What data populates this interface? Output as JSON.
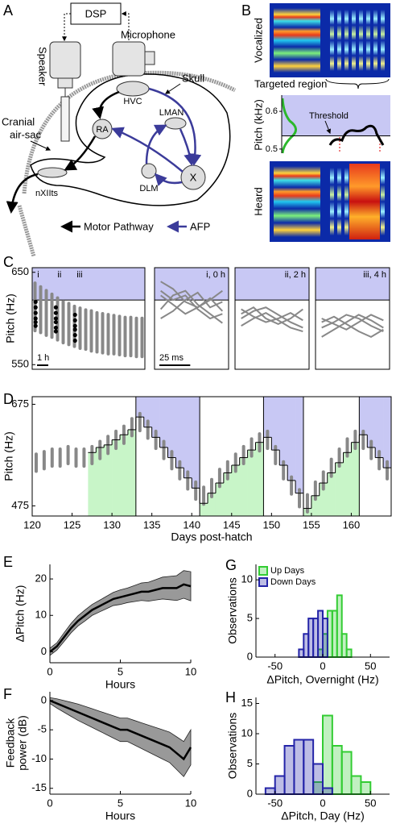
{
  "panel_labels": [
    "A",
    "B",
    "C",
    "D",
    "E",
    "F",
    "G",
    "H"
  ],
  "diagram": {
    "dsp": "DSP",
    "microphone": "Microphone",
    "speaker": "Speaker",
    "skull": "Skull",
    "cranial": "Cranial",
    "air_sac": "air-sac",
    "hvc": "HVC",
    "ra": "RA",
    "lman": "LMAN",
    "x": "X",
    "dlm": "DLM",
    "nxiits": "nXIIts",
    "motor_pathway": "Motor Pathway",
    "afp": "AFP"
  },
  "panel_b": {
    "vocalized": "Vocalized",
    "targeted_region": "Targeted region",
    "ylabel": "Pitch (kHz)",
    "threshold_label": "Threshold",
    "heard": "Heard",
    "ylim": [
      0.489,
      0.643
    ],
    "yticks": [
      0.5,
      0.6
    ],
    "threshold": 0.535,
    "shade_color": "#c8c8f4"
  },
  "chart_data": [
    {
      "type": "scatter",
      "ylabel": "Pitch (Hz)",
      "xlim": [
        0,
        10
      ],
      "ylim": [
        545,
        655
      ],
      "yticks": [
        550,
        650
      ],
      "threshold": 620,
      "shade_color": "#c8c8f4",
      "frame": true,
      "color": "#888888",
      "x": [
        0.25,
        0.75,
        1.25,
        1.75,
        2.25,
        2.75,
        3.25,
        3.75,
        4.25,
        4.75,
        5.25,
        5.75,
        6.25,
        6.75,
        7.25,
        7.75,
        8.25,
        8.75,
        9.25,
        9.75
      ],
      "low": [
        585,
        583,
        580,
        578,
        575,
        572,
        570,
        568,
        566,
        565,
        563,
        562,
        561,
        560,
        560,
        559,
        558,
        558,
        557,
        557
      ],
      "high": [
        640,
        636,
        632,
        628,
        624,
        620,
        618,
        615,
        613,
        611,
        610,
        608,
        607,
        606,
        605,
        604,
        603,
        603,
        602,
        602
      ],
      "series": [
        {
          "name": "i",
          "color": "#000000",
          "x": [
            0.3,
            0.3,
            0.3,
            0.3,
            0.3,
            0.3
          ],
          "values": [
            618,
            612,
            606,
            600,
            596,
            592
          ]
        },
        {
          "name": "ii",
          "color": "#000000",
          "x": [
            2.1,
            2.1,
            2.1,
            2.1,
            2.1,
            2.1
          ],
          "values": [
            612,
            606,
            600,
            596,
            590,
            586
          ]
        },
        {
          "name": "iii",
          "color": "#000000",
          "x": [
            3.8,
            3.8,
            3.8,
            3.8,
            3.8,
            3.8
          ],
          "values": [
            604,
            598,
            592,
            588,
            582,
            576
          ]
        }
      ],
      "scalebar": {
        "label": "1 h",
        "length": 1
      }
    },
    {
      "type": "line",
      "title": "i, 0 h",
      "xlim": [
        0,
        60
      ],
      "ylim": [
        545,
        655
      ],
      "threshold": 620,
      "shade_color": "#c8c8f4",
      "frame": true,
      "x": [
        5,
        15,
        25,
        35,
        45,
        55
      ],
      "series": [
        {
          "color": "#888888",
          "values": [
            630,
            620,
            625,
            610,
            600,
            605
          ]
        },
        {
          "color": "#888888",
          "values": [
            640,
            632,
            618,
            612,
            622,
            608
          ]
        },
        {
          "color": "#888888",
          "values": [
            610,
            625,
            630,
            615,
            605,
            595
          ]
        },
        {
          "color": "#888888",
          "values": [
            600,
            608,
            620,
            628,
            612,
            618
          ]
        },
        {
          "color": "#888888",
          "values": [
            625,
            615,
            605,
            612,
            620,
            630
          ]
        }
      ],
      "scalebar": {
        "label": "25 ms",
        "length": 25
      }
    },
    {
      "type": "line",
      "title": "ii, 2 h",
      "xlim": [
        0,
        60
      ],
      "ylim": [
        545,
        655
      ],
      "threshold": 620,
      "shade_color": "#c8c8f4",
      "frame": true,
      "x": [
        5,
        15,
        25,
        35,
        45,
        55
      ],
      "series": [
        {
          "color": "#888888",
          "values": [
            600,
            608,
            612,
            604,
            596,
            590
          ]
        },
        {
          "color": "#888888",
          "values": [
            610,
            602,
            596,
            600,
            606,
            598
          ]
        },
        {
          "color": "#888888",
          "values": [
            592,
            600,
            606,
            598,
            590,
            586
          ]
        },
        {
          "color": "#888888",
          "values": [
            605,
            612,
            600,
            594,
            600,
            610
          ]
        }
      ]
    },
    {
      "type": "line",
      "title": "iii, 4 h",
      "xlim": [
        0,
        60
      ],
      "ylim": [
        545,
        655
      ],
      "threshold": 620,
      "shade_color": "#c8c8f4",
      "frame": true,
      "x": [
        5,
        15,
        25,
        35,
        45,
        55
      ],
      "series": [
        {
          "color": "#888888",
          "values": [
            590,
            596,
            604,
            600,
            592,
            586
          ]
        },
        {
          "color": "#888888",
          "values": [
            600,
            594,
            588,
            596,
            604,
            598
          ]
        },
        {
          "color": "#888888",
          "values": [
            580,
            588,
            596,
            604,
            598,
            590
          ]
        },
        {
          "color": "#888888",
          "values": [
            596,
            602,
            594,
            586,
            580,
            588
          ]
        }
      ]
    },
    {
      "type": "scatter",
      "xlabel": "Days post-hatch",
      "ylabel": "Pitch (Hz)",
      "xlim": [
        120,
        165
      ],
      "ylim": [
        455,
        690
      ],
      "xticks": [
        120,
        125,
        130,
        135,
        140,
        145,
        150,
        155,
        160
      ],
      "yticks": [
        475,
        675
      ],
      "frame": true,
      "color": "#888888",
      "x": [
        120.5,
        121.5,
        122.5,
        123.5,
        124.5,
        125.5,
        126.5,
        127.5,
        128.5,
        129.5,
        130.5,
        131.5,
        132.5,
        133.5,
        134.5,
        135.5,
        136.5,
        137.5,
        138.5,
        139.5,
        140.5,
        141.5,
        142.5,
        143.5,
        144.5,
        145.5,
        146.5,
        147.5,
        148.5,
        149.5,
        150.5,
        151.5,
        152.5,
        153.5,
        154.5,
        155.5,
        156.5,
        157.5,
        158.5,
        159.5,
        160.5,
        161.5,
        162.5,
        163.5,
        164.5
      ],
      "low": [
        540,
        545,
        550,
        550,
        555,
        550,
        550,
        555,
        565,
        575,
        585,
        595,
        610,
        620,
        605,
        585,
        565,
        545,
        525,
        505,
        485,
        475,
        490,
        510,
        525,
        540,
        555,
        570,
        580,
        585,
        555,
        525,
        495,
        470,
        460,
        485,
        505,
        530,
        550,
        570,
        585,
        585,
        565,
        545,
        525
      ],
      "high": [
        580,
        585,
        590,
        590,
        595,
        590,
        590,
        595,
        605,
        615,
        625,
        635,
        650,
        660,
        645,
        625,
        605,
        585,
        565,
        545,
        525,
        515,
        530,
        550,
        565,
        580,
        595,
        610,
        620,
        625,
        595,
        565,
        535,
        510,
        500,
        525,
        545,
        570,
        590,
        610,
        625,
        625,
        605,
        585,
        565
      ],
      "threshold": {
        "color": "#000000",
        "x": [
          127,
          128,
          129,
          130,
          131,
          132,
          133,
          134,
          135,
          136,
          137,
          138,
          139,
          140,
          141,
          142,
          143,
          144,
          145,
          146,
          147,
          148,
          149,
          150,
          151,
          152,
          153,
          154,
          155,
          156,
          157,
          158,
          159,
          160,
          161,
          162,
          163,
          164
        ],
        "values": [
          580,
          590,
          595,
          605,
          615,
          625,
          650,
          630,
          610,
          590,
          570,
          550,
          530,
          510,
          480,
          500,
          520,
          540,
          555,
          570,
          585,
          600,
          610,
          585,
          555,
          525,
          500,
          470,
          495,
          520,
          540,
          560,
          580,
          600,
          615,
          590,
          570,
          550
        ]
      },
      "periods": [
        {
          "start": 127,
          "end": 133,
          "shade": "below"
        },
        {
          "start": 133,
          "end": 141,
          "shade": "above"
        },
        {
          "start": 141,
          "end": 149,
          "shade": "below"
        },
        {
          "start": 149,
          "end": 154,
          "shade": "above"
        },
        {
          "start": 154,
          "end": 161,
          "shade": "below"
        },
        {
          "start": 161,
          "end": 165,
          "shade": "above"
        }
      ],
      "below_color": "#c8f5c8",
      "above_color": "#c8c8f4"
    },
    {
      "type": "line",
      "xlabel": "Hours",
      "ylabel": "ΔPitch (Hz)",
      "xlim": [
        0,
        10
      ],
      "ylim": [
        -3,
        24
      ],
      "xticks": [
        0,
        5,
        10
      ],
      "yticks": [
        0,
        10,
        20
      ],
      "color": "#000000",
      "band_color": "#999999",
      "x": [
        0,
        0.5,
        1,
        1.5,
        2,
        2.5,
        3,
        3.5,
        4,
        4.5,
        5,
        5.5,
        6,
        6.5,
        7,
        7.5,
        8,
        8.5,
        9,
        9.5,
        10
      ],
      "values": [
        0,
        1.5,
        4,
        6.5,
        8.5,
        10,
        11.5,
        12.5,
        13.5,
        14.5,
        15,
        15.5,
        16,
        16.5,
        16.5,
        17,
        17.5,
        17.5,
        17.5,
        18.5,
        18
      ],
      "error": [
        1,
        1,
        1.2,
        1.3,
        1.4,
        1.5,
        1.5,
        1.6,
        1.7,
        1.8,
        2,
        2,
        2.2,
        2.4,
        2.6,
        2.8,
        3,
        3.2,
        3.4,
        3.8,
        4
      ]
    },
    {
      "type": "line",
      "xlabel": "Hours",
      "ylabel": [
        "Feedback",
        "power (dB)"
      ],
      "xlim": [
        0,
        10
      ],
      "ylim": [
        -16,
        1.5
      ],
      "xticks": [
        0,
        5,
        10
      ],
      "yticks": [
        0,
        -5,
        -10,
        -15
      ],
      "color": "#000000",
      "band_color": "#999999",
      "x": [
        0,
        0.5,
        1,
        1.5,
        2,
        2.5,
        3,
        3.5,
        4,
        4.5,
        5,
        5.5,
        6,
        6.5,
        7,
        7.5,
        8,
        8.5,
        9,
        9.5,
        10
      ],
      "values": [
        0,
        -0.5,
        -1,
        -1.5,
        -2,
        -2.5,
        -3,
        -3.5,
        -4,
        -4.5,
        -5,
        -5,
        -5.5,
        -6,
        -6.5,
        -7,
        -7.5,
        -8,
        -9,
        -10,
        -8
      ],
      "error": [
        0.5,
        0.8,
        1,
        1.2,
        1.4,
        1.5,
        1.6,
        1.7,
        1.8,
        1.9,
        2,
        2,
        2.1,
        2.2,
        2.3,
        2.4,
        2.5,
        2.6,
        2.8,
        3,
        3
      ]
    },
    {
      "type": "histogram",
      "xlabel": "ΔPitch, Overnight (Hz)",
      "ylabel": "Observations",
      "xlim": [
        -70,
        70
      ],
      "ylim": [
        0,
        12
      ],
      "xticks": [
        -50,
        0,
        50
      ],
      "yticks": [
        0,
        5,
        10
      ],
      "legend": "top-left",
      "bins": [
        -30,
        -25,
        -20,
        -15,
        -10,
        -5,
        0,
        5,
        10,
        15,
        20,
        25,
        30,
        35
      ],
      "series": [
        {
          "name": "Up Days",
          "color": "#33cc33",
          "values": [
            0,
            0,
            0,
            0,
            0,
            1,
            3,
            6,
            6,
            8,
            3,
            1,
            0
          ]
        },
        {
          "name": "Down Days",
          "color": "#2424a8",
          "values": [
            0,
            1,
            3,
            5,
            5,
            6,
            5,
            0,
            0,
            0,
            0,
            0,
            0
          ]
        }
      ]
    },
    {
      "type": "histogram",
      "xlabel": "ΔPitch, Day (Hz)",
      "ylabel": "Observations",
      "xlim": [
        -70,
        70
      ],
      "ylim": [
        0,
        16
      ],
      "xticks": [
        -50,
        0,
        50
      ],
      "yticks": [
        0,
        5,
        10,
        15
      ],
      "bins": [
        -60,
        -50,
        -40,
        -30,
        -20,
        -10,
        0,
        10,
        20,
        30,
        40,
        50,
        60
      ],
      "series": [
        {
          "color": "#33cc33",
          "values": [
            0,
            0,
            0,
            0,
            0,
            2,
            13,
            8,
            7,
            3,
            2,
            0
          ]
        },
        {
          "color": "#2424a8",
          "values": [
            1,
            3,
            8,
            9,
            9,
            5,
            1,
            0,
            0,
            0,
            0,
            0
          ]
        }
      ]
    }
  ]
}
